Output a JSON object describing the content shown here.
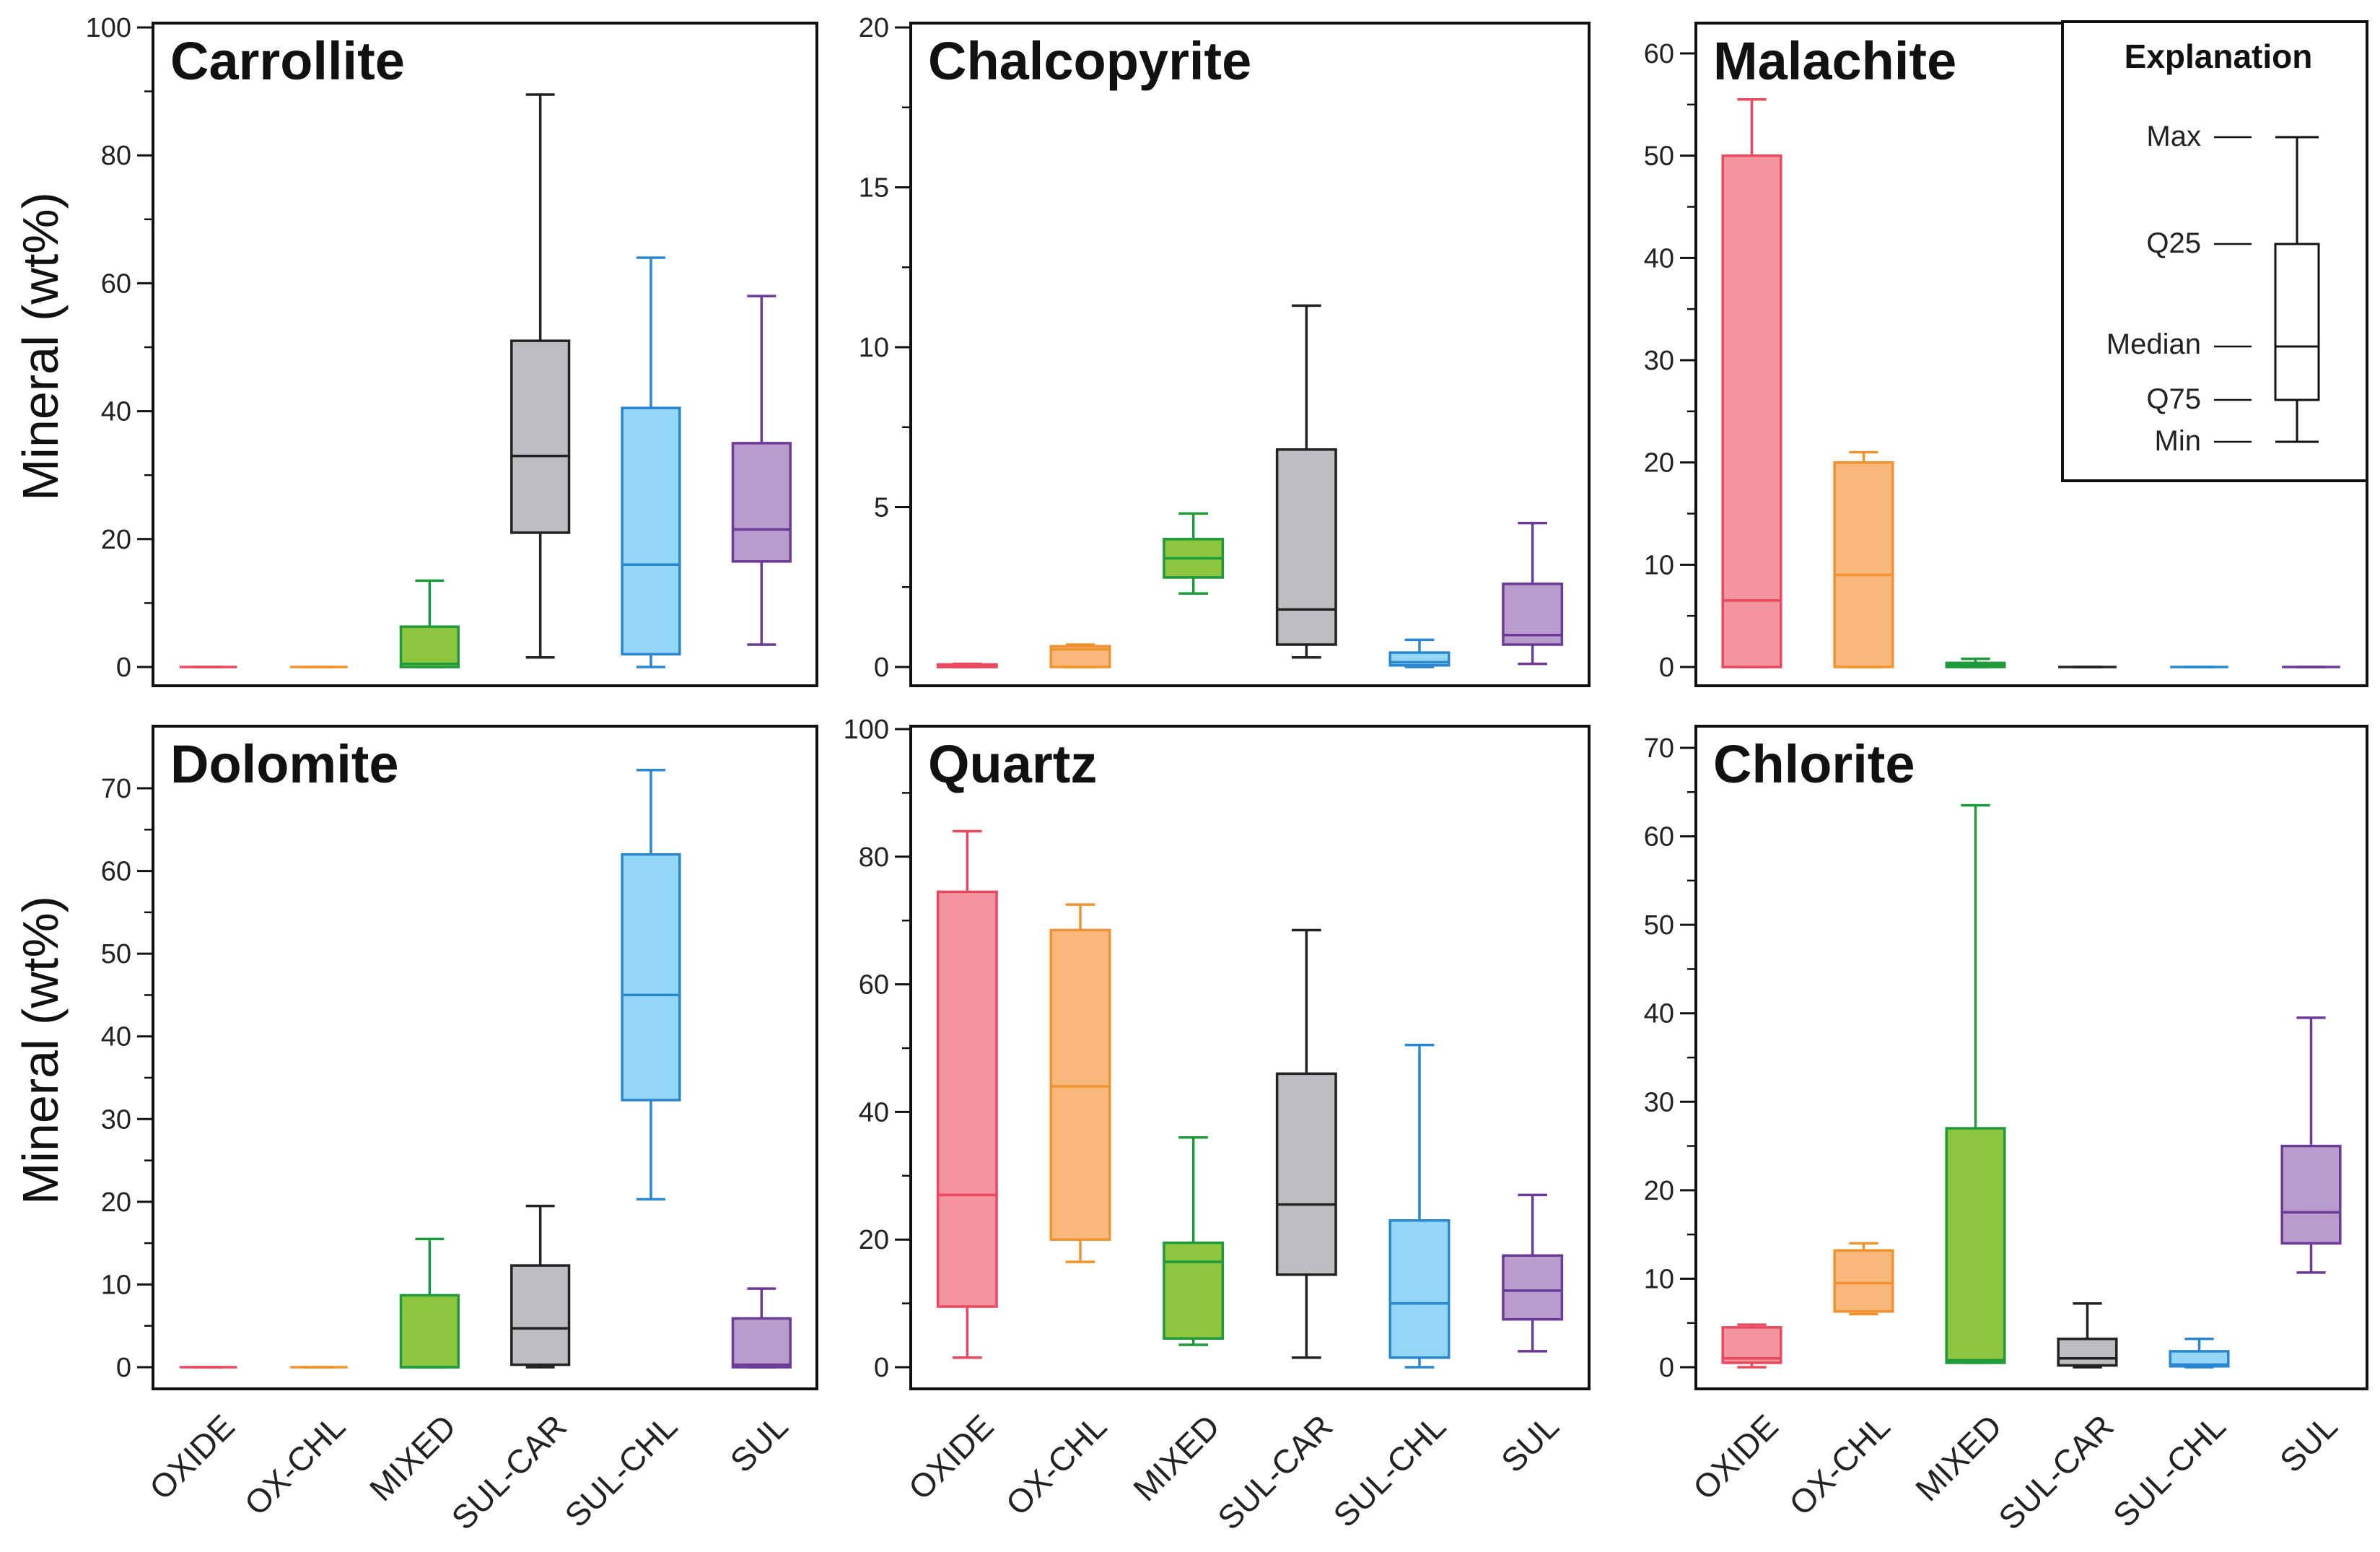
{
  "figure": {
    "y_axis_label": "Mineral (wt%)",
    "legend": {
      "title": "Explanation",
      "labels": [
        "Max",
        "Q25",
        "Median",
        "Q75",
        "Min"
      ]
    }
  },
  "colors": {
    "OXIDE": {
      "stroke": "#e8495e",
      "fill": "#f4949f"
    },
    "OX-CHL": {
      "stroke": "#f0922d",
      "fill": "#f8b87c"
    },
    "MIXED": {
      "stroke": "#1f9a3a",
      "fill": "#8cc63f"
    },
    "SUL-CAR": {
      "stroke": "#222222",
      "fill": "#bcbdc0"
    },
    "SUL-CHL": {
      "stroke": "#2a86cf",
      "fill": "#93d6f5"
    },
    "SUL": {
      "stroke": "#6b3a97",
      "fill": "#b99ccb"
    }
  },
  "chart_data": [
    {
      "type": "box",
      "title": "Carrollite",
      "ylabel": "Mineral (wt%)",
      "ylim": [
        0,
        100
      ],
      "yticks": [
        0,
        20,
        40,
        60,
        80,
        100
      ],
      "categories": [
        "OXIDE",
        "OX-CHL",
        "MIXED",
        "SUL-CAR",
        "SUL-CHL",
        "SUL"
      ],
      "boxes": [
        {
          "min": 0,
          "q1": 0,
          "median": 0,
          "q3": 0,
          "max": 0
        },
        {
          "min": 0,
          "q1": 0,
          "median": 0,
          "q3": 0,
          "max": 0
        },
        {
          "min": 0,
          "q1": 0,
          "median": 0.5,
          "q3": 6.3,
          "max": 13.5
        },
        {
          "min": 1.5,
          "q1": 21,
          "median": 33,
          "q3": 51,
          "max": 89.5
        },
        {
          "min": 0,
          "q1": 2,
          "median": 16,
          "q3": 40.5,
          "max": 64
        },
        {
          "min": 3.5,
          "q1": 16.5,
          "median": 21.5,
          "q3": 35,
          "max": 58
        }
      ]
    },
    {
      "type": "box",
      "title": "Chalcopyrite",
      "ylabel": "",
      "ylim": [
        0,
        20
      ],
      "yticks": [
        0,
        5,
        10,
        15,
        20
      ],
      "categories": [
        "OXIDE",
        "OX-CHL",
        "MIXED",
        "SUL-CAR",
        "SUL-CHL",
        "SUL"
      ],
      "boxes": [
        {
          "min": 0,
          "q1": 0,
          "median": 0.02,
          "q3": 0.08,
          "max": 0.1
        },
        {
          "min": 0,
          "q1": 0,
          "median": 0.55,
          "q3": 0.65,
          "max": 0.7
        },
        {
          "min": 2.3,
          "q1": 2.8,
          "median": 3.4,
          "q3": 4.0,
          "max": 4.8
        },
        {
          "min": 0.3,
          "q1": 0.7,
          "median": 1.8,
          "q3": 6.8,
          "max": 11.3
        },
        {
          "min": 0,
          "q1": 0.05,
          "median": 0.15,
          "q3": 0.45,
          "max": 0.85
        },
        {
          "min": 0.1,
          "q1": 0.7,
          "median": 1.0,
          "q3": 2.6,
          "max": 4.5
        }
      ]
    },
    {
      "type": "box",
      "title": "Malachite",
      "ylabel": "",
      "ylim": [
        0,
        60
      ],
      "yticks": [
        0,
        10,
        20,
        30,
        40,
        50,
        60
      ],
      "categories": [
        "OXIDE",
        "OX-CHL",
        "MIXED",
        "SUL-CAR",
        "SUL-CHL",
        "SUL"
      ],
      "boxes": [
        {
          "min": 0,
          "q1": 0,
          "median": 6.5,
          "q3": 50,
          "max": 55.5
        },
        {
          "min": 0,
          "q1": 0,
          "median": 9,
          "q3": 20,
          "max": 21
        },
        {
          "min": 0,
          "q1": 0,
          "median": 0.2,
          "q3": 0.4,
          "max": 0.8
        },
        {
          "min": 0,
          "q1": 0,
          "median": 0,
          "q3": 0,
          "max": 0
        },
        {
          "min": 0,
          "q1": 0,
          "median": 0,
          "q3": 0,
          "max": 0
        },
        {
          "min": 0,
          "q1": 0,
          "median": 0,
          "q3": 0,
          "max": 0
        }
      ]
    },
    {
      "type": "box",
      "title": "Dolomite",
      "ylabel": "Mineral (wt%)",
      "ylim": [
        0,
        75
      ],
      "yticks": [
        0,
        10,
        20,
        30,
        40,
        50,
        60,
        70
      ],
      "categories": [
        "OXIDE",
        "OX-CHL",
        "MIXED",
        "SUL-CAR",
        "SUL-CHL",
        "SUL"
      ],
      "boxes": [
        {
          "min": 0,
          "q1": 0,
          "median": 0,
          "q3": 0,
          "max": 0
        },
        {
          "min": 0,
          "q1": 0,
          "median": 0,
          "q3": 0,
          "max": 0
        },
        {
          "min": 0,
          "q1": 0,
          "median": 0,
          "q3": 8.7,
          "max": 15.5
        },
        {
          "min": 0,
          "q1": 0.3,
          "median": 4.7,
          "q3": 12.3,
          "max": 19.5
        },
        {
          "min": 20.3,
          "q1": 32.3,
          "median": 45,
          "q3": 62,
          "max": 72.2
        },
        {
          "min": 0,
          "q1": 0,
          "median": 0.3,
          "q3": 5.9,
          "max": 9.5
        }
      ]
    },
    {
      "type": "box",
      "title": "Quartz",
      "ylabel": "",
      "ylim": [
        0,
        100
      ],
      "yticks": [
        0,
        20,
        40,
        60,
        80,
        100
      ],
      "categories": [
        "OXIDE",
        "OX-CHL",
        "MIXED",
        "SUL-CAR",
        "SUL-CHL",
        "SUL"
      ],
      "boxes": [
        {
          "min": 1.5,
          "q1": 9.5,
          "median": 27,
          "q3": 74.5,
          "max": 84
        },
        {
          "min": 16.5,
          "q1": 20,
          "median": 44,
          "q3": 68.5,
          "max": 72.5
        },
        {
          "min": 3.5,
          "q1": 4.5,
          "median": 16.5,
          "q3": 19.5,
          "max": 36
        },
        {
          "min": 1.5,
          "q1": 14.5,
          "median": 25.5,
          "q3": 46,
          "max": 68.5
        },
        {
          "min": 0,
          "q1": 1.5,
          "median": 10,
          "q3": 23,
          "max": 50.5
        },
        {
          "min": 2.5,
          "q1": 7.5,
          "median": 12,
          "q3": 17.5,
          "max": 27
        }
      ]
    },
    {
      "type": "box",
      "title": "Chlorite",
      "ylabel": "",
      "ylim": [
        0,
        72
      ],
      "yticks": [
        0,
        10,
        20,
        30,
        40,
        50,
        60,
        70
      ],
      "categories": [
        "OXIDE",
        "OX-CHL",
        "MIXED",
        "SUL-CAR",
        "SUL-CHL",
        "SUL"
      ],
      "boxes": [
        {
          "min": 0,
          "q1": 0.5,
          "median": 1,
          "q3": 4.5,
          "max": 4.8
        },
        {
          "min": 6,
          "q1": 6.3,
          "median": 9.5,
          "q3": 13.2,
          "max": 14
        },
        {
          "min": 0.5,
          "q1": 0.5,
          "median": 0.8,
          "q3": 27,
          "max": 63.5
        },
        {
          "min": 0,
          "q1": 0.2,
          "median": 1,
          "q3": 3.2,
          "max": 7.2
        },
        {
          "min": 0,
          "q1": 0.1,
          "median": 0.3,
          "q3": 1.8,
          "max": 3.2
        },
        {
          "min": 10.7,
          "q1": 14,
          "median": 17.5,
          "q3": 25,
          "max": 39.5
        }
      ]
    }
  ]
}
